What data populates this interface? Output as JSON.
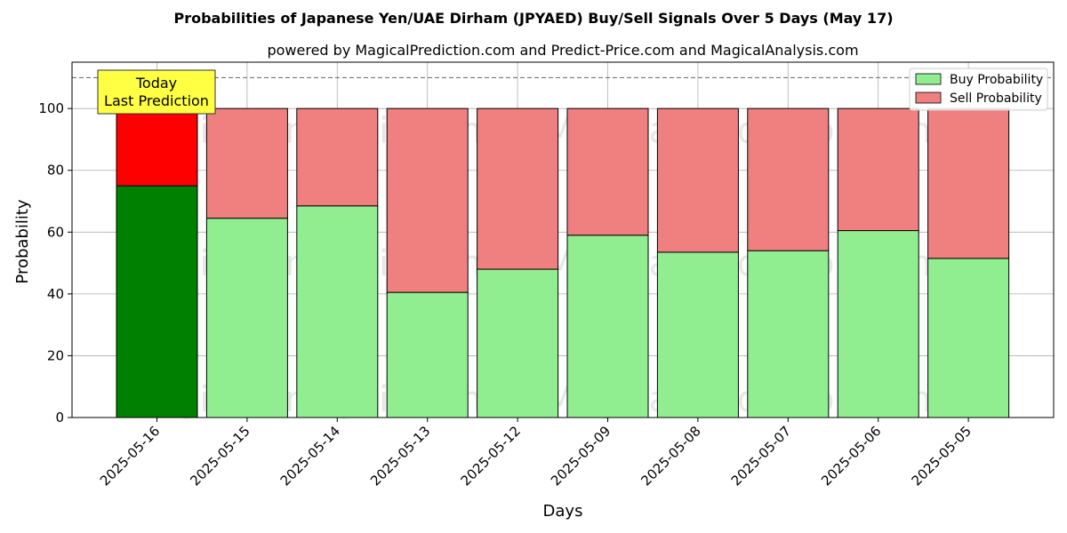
{
  "chart_data": {
    "type": "bar",
    "stacked": true,
    "title": "Probabilities of Japanese Yen/UAE Dirham (JPYAED) Buy/Sell Signals Over 5 Days (May 17)",
    "subtitle": "powered by MagicalPrediction.com and Predict-Price.com and MagicalAnalysis.com",
    "xlabel": "Days",
    "ylabel": "Probability",
    "ylim": [
      0,
      115
    ],
    "yticks": [
      0,
      20,
      40,
      60,
      80,
      100
    ],
    "grid": true,
    "legend_position": "top-right",
    "reference_line": 110,
    "categories": [
      "2025-05-16",
      "2025-05-15",
      "2025-05-14",
      "2025-05-13",
      "2025-05-12",
      "2025-05-09",
      "2025-05-08",
      "2025-05-07",
      "2025-05-06",
      "2025-05-05"
    ],
    "series": [
      {
        "name": "Buy Probability",
        "color": "#90ee90",
        "highlight_color": "#008000",
        "values": [
          75,
          64.5,
          68.5,
          40.5,
          48,
          59,
          53.5,
          54,
          60.5,
          51.5
        ]
      },
      {
        "name": "Sell Probability",
        "color": "#f08080",
        "highlight_color": "#ff0000",
        "values": [
          25,
          35.5,
          31.5,
          59.5,
          52,
          41,
          46.5,
          46,
          39.5,
          48.5
        ]
      }
    ],
    "annotation": {
      "line1": "Today",
      "line2": "Last Prediction",
      "color": "#ffff44"
    },
    "watermarks": [
      "MagicalAnalysis.com",
      "MagicalPrediction.com"
    ]
  }
}
